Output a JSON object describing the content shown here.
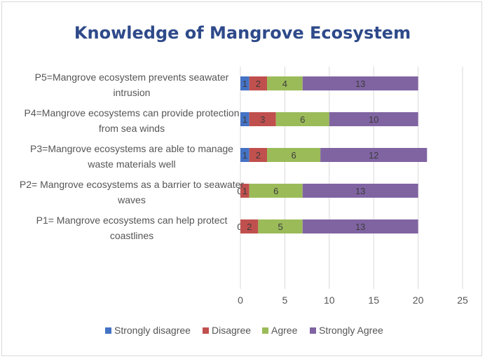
{
  "chart_data": {
    "type": "bar",
    "orientation": "horizontal",
    "stacked": true,
    "title": "Knowledge of Mangrove Ecosystem",
    "categories": [
      "P5=Mangrove ecosystem prevents seawater intrusion",
      "P4=Mangrove ecosystems can provide protection from sea winds",
      "P3=Mangrove ecosystems are able to manage waste materials well",
      "P2= Mangrove ecosystems as a barrier to seawater waves",
      "P1= Mangrove ecosystems can help protect coastlines"
    ],
    "category_lines": [
      [
        "P5=Mangrove ecosystem prevents seawater",
        "intrusion"
      ],
      [
        "P4=Mangrove ecosystems can provide protection",
        "from sea winds"
      ],
      [
        "P3=Mangrove ecosystems are able to manage",
        "waste materials well"
      ],
      [
        "P2= Mangrove ecosystems as a barrier to seawater",
        "waves"
      ],
      [
        "P1= Mangrove ecosystems can help protect",
        "coastlines"
      ]
    ],
    "series": [
      {
        "name": "Strongly disagree",
        "color": "#4472c4",
        "values": [
          1,
          1,
          1,
          0,
          0
        ]
      },
      {
        "name": "Disagree",
        "color": "#c0504d",
        "values": [
          2,
          3,
          2,
          1,
          2
        ]
      },
      {
        "name": "Agree",
        "color": "#9bbb59",
        "values": [
          4,
          6,
          6,
          6,
          5
        ]
      },
      {
        "name": "Strongly Agree",
        "color": "#8064a2",
        "values": [
          13,
          10,
          12,
          13,
          13
        ]
      }
    ],
    "data_labels": [
      [
        "1",
        "2",
        "4",
        "13"
      ],
      [
        "1",
        "3",
        "6",
        "10"
      ],
      [
        "1",
        "2",
        "6",
        "12"
      ],
      [
        "0",
        "1",
        "6",
        "13"
      ],
      [
        "0",
        "2",
        "5",
        "13"
      ]
    ],
    "xlim": [
      0,
      25
    ],
    "xticks": [
      0,
      5,
      10,
      15,
      20,
      25
    ],
    "legend_position": "bottom",
    "grid": "vertical"
  }
}
